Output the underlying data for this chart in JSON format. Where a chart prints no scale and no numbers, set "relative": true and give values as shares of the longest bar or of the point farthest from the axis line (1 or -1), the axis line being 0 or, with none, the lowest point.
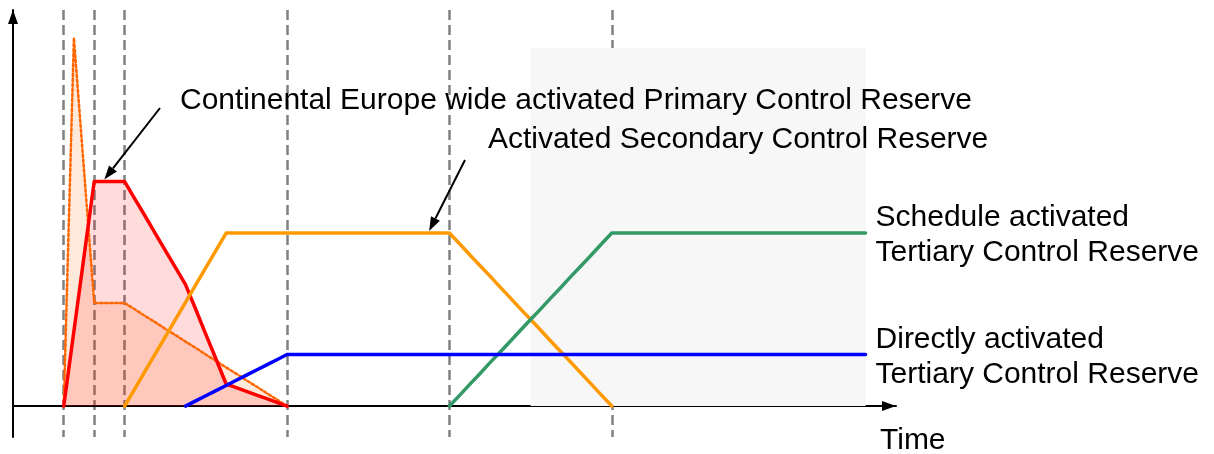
{
  "chart_data": {
    "type": "line",
    "relative": true,
    "xlabel": "Time",
    "grid": "x",
    "categories": [
      null,
      null,
      null,
      null,
      null,
      null,
      null,
      null,
      null,
      null,
      null,
      null,
      null,
      null,
      null,
      null,
      null,
      null,
      null,
      null,
      null,
      null,
      null,
      null,
      null,
      null,
      null,
      null,
      null,
      null,
      null,
      null,
      null,
      null,
      null,
      null,
      null,
      null,
      null,
      null,
      null,
      null,
      null,
      null,
      null,
      null,
      null,
      null,
      null,
      null,
      null,
      null,
      null,
      null,
      null,
      null,
      null,
      null,
      null,
      null,
      null,
      null,
      null,
      null,
      null,
      null,
      null,
      null,
      null,
      null,
      null,
      null,
      null,
      null,
      null,
      null,
      null,
      null,
      null,
      null,
      null,
      null,
      null,
      null,
      null,
      null,
      null,
      null
    ],
    "series": [
      {
        "type": "area",
        "color": "#ff6600",
        "line_style": "dotted",
        "values": [
          null,
          null,
          null,
          null,
          null,
          0,
          1,
          0.64,
          0.28,
          0.28,
          0.28,
          0.28,
          0.263,
          0.245,
          0.228,
          0.21,
          0.193,
          0.175,
          0.158,
          0.14,
          0.123,
          0.105,
          0.088,
          0.07,
          0.053,
          0.035,
          0.018,
          0,
          null,
          null,
          null,
          null,
          null,
          null,
          null,
          null,
          null,
          null,
          null,
          null,
          null,
          null,
          null,
          null,
          null,
          null,
          null,
          null,
          null,
          null,
          null,
          null,
          null,
          null,
          null,
          null,
          null,
          null,
          null,
          null,
          null,
          null,
          null,
          null,
          null,
          null,
          null,
          null,
          null,
          null,
          null,
          null,
          null,
          null,
          null,
          null,
          null,
          null,
          null,
          null,
          null,
          null,
          null,
          null,
          null,
          null,
          null,
          null
        ]
      },
      {
        "type": "area",
        "name": "Continental Europe wide activated Primary Control Reserve",
        "color": "#ff0000",
        "values": [
          null,
          null,
          null,
          null,
          null,
          0,
          0.203,
          0.407,
          0.61,
          0.61,
          0.61,
          0.61,
          0.563,
          0.517,
          0.47,
          0.423,
          0.377,
          0.33,
          0.263,
          0.195,
          0.128,
          0.06,
          0.05,
          0.04,
          0.03,
          0.02,
          0.01,
          0,
          null,
          null,
          null,
          null,
          null,
          null,
          null,
          null,
          null,
          null,
          null,
          null,
          null,
          null,
          null,
          null,
          null,
          null,
          null,
          null,
          null,
          null,
          null,
          null,
          null,
          null,
          null,
          null,
          null,
          null,
          null,
          null,
          null,
          null,
          null,
          null,
          null,
          null,
          null,
          null,
          null,
          null,
          null,
          null,
          null,
          null,
          null,
          null,
          null,
          null,
          null,
          null,
          null,
          null,
          null,
          null,
          null,
          null,
          null,
          null
        ]
      },
      {
        "name": "Activated Secondary Control Reserve",
        "color": "#ff9900",
        "values": [
          null,
          null,
          null,
          null,
          null,
          null,
          null,
          null,
          null,
          null,
          null,
          0,
          0.047,
          0.094,
          0.141,
          0.188,
          0.235,
          0.282,
          0.329,
          0.376,
          0.423,
          0.47,
          0.47,
          0.47,
          0.47,
          0.47,
          0.47,
          0.47,
          0.47,
          0.47,
          0.47,
          0.47,
          0.47,
          0.47,
          0.47,
          0.47,
          0.47,
          0.47,
          0.47,
          0.47,
          0.47,
          0.47,
          0.47,
          0.47,
          0.441,
          0.411,
          0.382,
          0.353,
          0.323,
          0.294,
          0.264,
          0.235,
          0.206,
          0.176,
          0.147,
          0.118,
          0.088,
          0.059,
          0.029,
          0,
          null,
          null,
          null,
          null,
          null,
          null,
          null,
          null,
          null,
          null,
          null,
          null,
          null,
          null,
          null,
          null,
          null,
          null,
          null,
          null,
          null,
          null,
          null,
          null,
          null,
          null,
          null,
          null
        ]
      },
      {
        "name": "Schedule activated Tertiary Control Reserve",
        "color": "#339966",
        "values": [
          null,
          null,
          null,
          null,
          null,
          null,
          null,
          null,
          null,
          null,
          null,
          null,
          null,
          null,
          null,
          null,
          null,
          null,
          null,
          null,
          null,
          null,
          null,
          null,
          null,
          null,
          null,
          null,
          null,
          null,
          null,
          null,
          null,
          null,
          null,
          null,
          null,
          null,
          null,
          null,
          null,
          null,
          null,
          0,
          0.029,
          0.059,
          0.088,
          0.118,
          0.147,
          0.176,
          0.206,
          0.235,
          0.264,
          0.294,
          0.323,
          0.353,
          0.382,
          0.411,
          0.441,
          0.47,
          0.47,
          0.47,
          0.47,
          0.47,
          0.47,
          0.47,
          0.47,
          0.47,
          0.47,
          0.47,
          0.47,
          0.47,
          0.47,
          0.47,
          0.47,
          0.47,
          0.47,
          0.47,
          0.47,
          0.47,
          0.47,
          0.47,
          0.47,
          0.47,
          0.47,
          null,
          null,
          null
        ]
      },
      {
        "name": "Directly activated Tertiary Control Reserve",
        "color": "#0000ff",
        "values": [
          null,
          null,
          null,
          null,
          null,
          null,
          null,
          null,
          null,
          null,
          null,
          null,
          null,
          null,
          null,
          null,
          null,
          0,
          0.014,
          0.028,
          0.042,
          0.056,
          0.07,
          0.084,
          0.098,
          0.112,
          0.126,
          0.14,
          0.14,
          0.14,
          0.14,
          0.14,
          0.14,
          0.14,
          0.14,
          0.14,
          0.14,
          0.14,
          0.14,
          0.14,
          0.14,
          0.14,
          0.14,
          0.14,
          0.14,
          0.14,
          0.14,
          0.14,
          0.14,
          0.14,
          0.14,
          0.14,
          0.14,
          0.14,
          0.14,
          0.14,
          0.14,
          0.14,
          0.14,
          0.14,
          0.14,
          0.14,
          0.14,
          0.14,
          0.14,
          0.14,
          0.14,
          0.14,
          0.14,
          0.14,
          0.14,
          0.14,
          0.14,
          0.14,
          0.14,
          0.14,
          0.14,
          0.14,
          0.14,
          0.14,
          0.14,
          0.14,
          0.14,
          0.14,
          0.14,
          null,
          null,
          null
        ]
      }
    ]
  }
}
